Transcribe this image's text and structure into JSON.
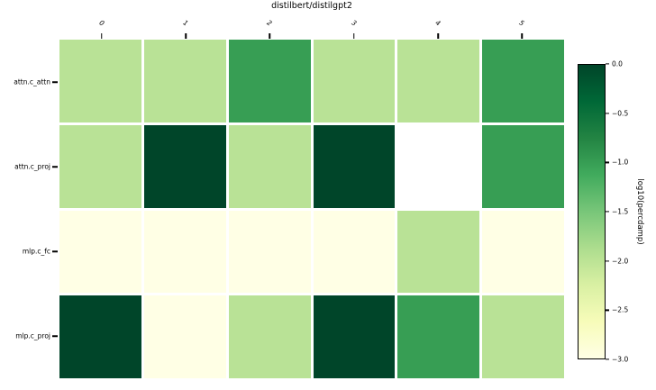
{
  "title": "distilbert/distilgpt2",
  "chart_data": {
    "type": "heatmap",
    "title": "distilbert/distilgpt2",
    "x_tick_labels": [
      "0",
      "1",
      "2",
      "3",
      "4",
      "5"
    ],
    "y_tick_labels": [
      "attn.c_attn",
      "attn.c_proj",
      "mlp.c_fc",
      "mlp.c_proj"
    ],
    "values": [
      [
        -2,
        -2,
        -1,
        -2,
        -2,
        -1
      ],
      [
        -2,
        0,
        -2,
        0,
        null,
        -1
      ],
      [
        -3,
        -3,
        -3,
        -3,
        -2,
        -3
      ],
      [
        0,
        -3,
        -2,
        0,
        -1,
        -2
      ]
    ],
    "colormap": "YlGn",
    "value_colors": {
      "0": "#004529",
      "-1": "#379e54",
      "-2": "#b9e296",
      "-3": "#ffffe5"
    },
    "nan_color": "#ffffff",
    "grid_line_color": "#ffffff",
    "colorbar": {
      "label": "log10(percdamp)",
      "min": -3.0,
      "max": 0.0,
      "tick_labels": [
        "0.0",
        "−0.5",
        "−1.0",
        "−1.5",
        "−2.0",
        "−2.5",
        "−3.0"
      ],
      "gradient_stops_top_to_bottom": [
        "#004529",
        "#006837",
        "#238443",
        "#41ab5d",
        "#78c679",
        "#addd8e",
        "#d9f0a3",
        "#f7fcb9",
        "#ffffe5"
      ]
    },
    "legend_position": "right",
    "x_axis_position": "top"
  }
}
